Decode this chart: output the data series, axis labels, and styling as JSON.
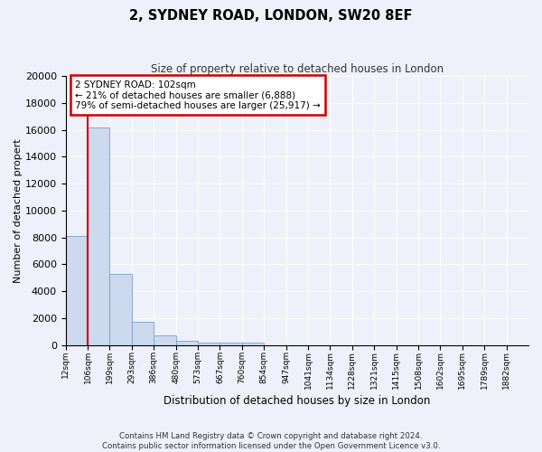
{
  "title": "2, SYDNEY ROAD, LONDON, SW20 8EF",
  "subtitle": "Size of property relative to detached houses in London",
  "xlabel": "Distribution of detached houses by size in London",
  "ylabel": "Number of detached properties",
  "bar_color": "#ccd9ee",
  "bar_edgecolor": "#7aa0cc",
  "bar_values": [
    8100,
    16200,
    5300,
    1750,
    700,
    300,
    200,
    200,
    150,
    0,
    0,
    0,
    0,
    0,
    0,
    0,
    0,
    0,
    0,
    0,
    0
  ],
  "categories": [
    "12sqm",
    "106sqm",
    "199sqm",
    "293sqm",
    "386sqm",
    "480sqm",
    "573sqm",
    "667sqm",
    "760sqm",
    "854sqm",
    "947sqm",
    "1041sqm",
    "1134sqm",
    "1228sqm",
    "1321sqm",
    "1415sqm",
    "1508sqm",
    "1602sqm",
    "1695sqm",
    "1789sqm",
    "1882sqm"
  ],
  "ylim": [
    0,
    20000
  ],
  "yticks": [
    0,
    2000,
    4000,
    6000,
    8000,
    10000,
    12000,
    14000,
    16000,
    18000,
    20000
  ],
  "annotation_text": "2 SYDNEY ROAD: 102sqm\n← 21% of detached houses are smaller (6,888)\n79% of semi-detached houses are larger (25,917) →",
  "footer_line1": "Contains HM Land Registry data © Crown copyright and database right 2024.",
  "footer_line2": "Contains public sector information licensed under the Open Government Licence v3.0.",
  "bg_color": "#eef1f9",
  "grid_color": "#ffffff",
  "annotation_box_color": "#ffffff",
  "annotation_box_edgecolor": "#cc0000",
  "property_line_color": "#cc0000",
  "property_line_x": 1
}
